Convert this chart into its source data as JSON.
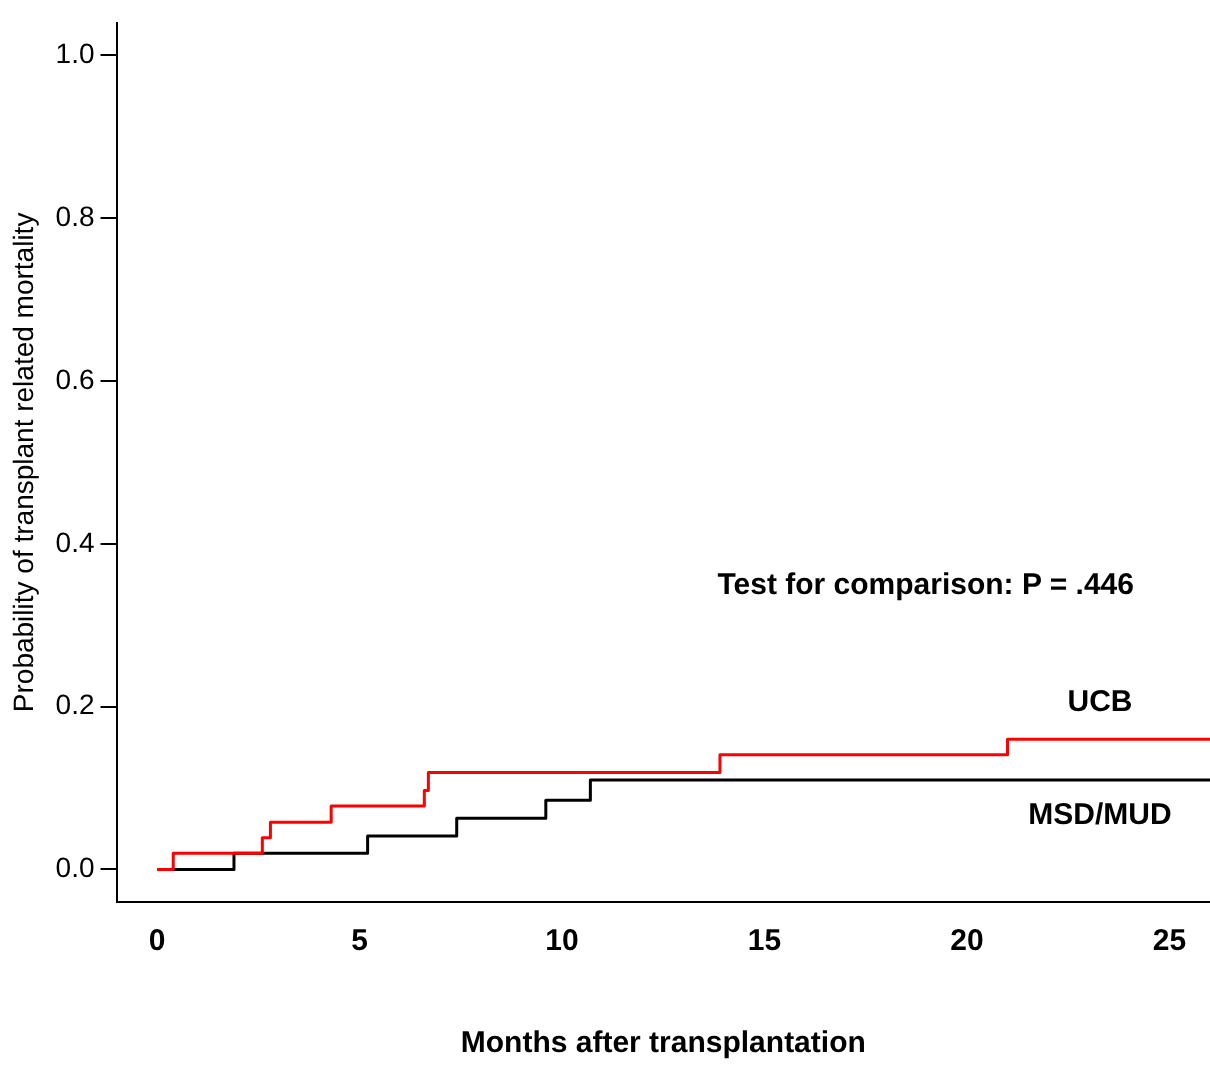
{
  "chart_data": {
    "type": "step",
    "xlabel": "Months after transplantation",
    "ylabel": "Probability of transplant related mortality",
    "xlim": [
      -1,
      26
    ],
    "xticks": [
      0,
      5,
      10,
      15,
      20,
      25
    ],
    "ylim": [
      -0.04,
      1.04
    ],
    "yticks": [
      {
        "value": 0,
        "label": "0.0"
      },
      {
        "value": 0.2,
        "label": "0.2"
      },
      {
        "value": 0.4,
        "label": "0.4"
      },
      {
        "value": 0.6,
        "label": "0.6"
      },
      {
        "value": 0.8,
        "label": "0.8"
      },
      {
        "value": 1,
        "label": "1.0"
      }
    ],
    "grid": false,
    "legend": false,
    "marker": "none",
    "line_style": "solid",
    "series": [
      {
        "name": "UCB",
        "color": "#ff0000",
        "x": [
          0,
          0.4,
          2.6,
          2.8,
          4.3,
          6.6,
          6.7,
          13.9,
          21.0,
          26
        ],
        "values": [
          0,
          0.02,
          0.039,
          0.058,
          0.078,
          0.097,
          0.119,
          0.141,
          0.16,
          0.16
        ]
      },
      {
        "name": "MSD/MUD",
        "color": "#000000",
        "x": [
          0,
          1.9,
          5.2,
          7.4,
          9.6,
          10.7,
          26
        ],
        "values": [
          0,
          0.02,
          0.041,
          0.063,
          0.085,
          0.11,
          0.11
        ]
      }
    ],
    "annotations": [
      "Test for comparison: P = .446"
    ]
  }
}
